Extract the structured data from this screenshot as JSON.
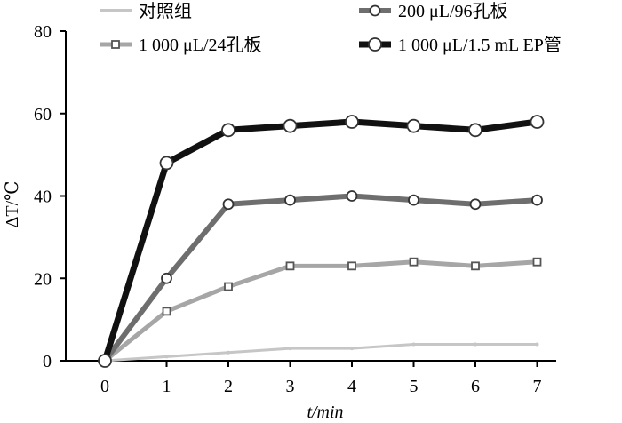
{
  "chart_data": {
    "type": "line",
    "xlabel": "t/min",
    "ylabel": "ΔT/℃",
    "x": [
      0,
      1,
      2,
      3,
      4,
      5,
      6,
      7
    ],
    "xlim": [
      0,
      7
    ],
    "ylim": [
      0,
      80
    ],
    "xticks": [
      "0",
      "1",
      "2",
      "3",
      "4",
      "5",
      "6",
      "7"
    ],
    "yticks": [
      "0",
      "20",
      "40",
      "60",
      "80"
    ],
    "grid": false,
    "legend_position": "top",
    "series": [
      {
        "name": "对照组",
        "color": "#c6c6c6",
        "values": [
          0,
          1,
          2,
          3,
          3,
          4,
          4,
          4
        ]
      },
      {
        "name": "200 μL/96孔板",
        "color": "#6e6e6e",
        "values": [
          0,
          20,
          38,
          39,
          40,
          39,
          38,
          39
        ]
      },
      {
        "name": "1 000 μL/24孔板",
        "color": "#a6a6a6",
        "values": [
          0,
          12,
          18,
          23,
          23,
          24,
          23,
          24
        ]
      },
      {
        "name": "1 000 μL/1.5 mL EP管",
        "color": "#111111",
        "values": [
          0,
          48,
          56,
          57,
          58,
          57,
          56,
          58
        ]
      }
    ]
  }
}
